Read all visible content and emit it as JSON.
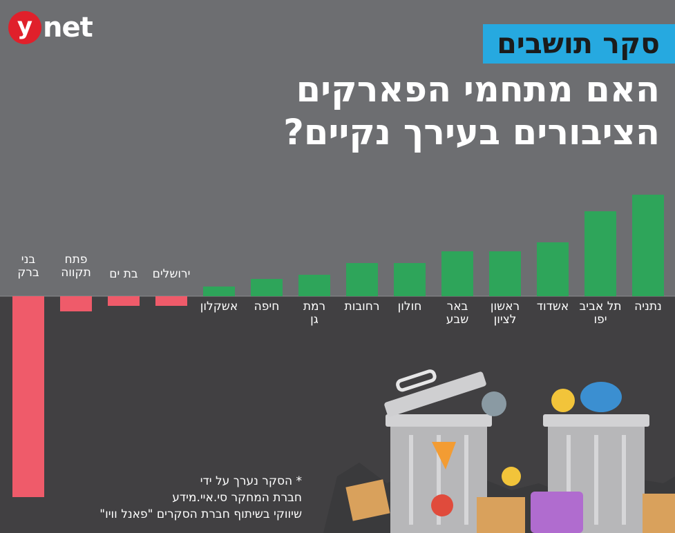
{
  "brand": {
    "logo_mark": "y",
    "logo_text": "net"
  },
  "badge": "סקר תושבים",
  "headline": {
    "line1": "האם מתחמי הפארקים",
    "line2": "הציבורים בעירך נקיים?"
  },
  "colors": {
    "positive": "#2ea55a",
    "negative": "#ef5b6a",
    "badge": "#26a9e0",
    "background_top": "#6d6e71",
    "background_bottom": "#414042"
  },
  "chart_data": {
    "type": "bar",
    "categories": [
      "נתניה",
      "תל אביב יפו",
      "אשדוד",
      "ראשון לציון",
      "באר שבע",
      "חולון",
      "רחובות",
      "רמת גן",
      "חיפה",
      "אשקלון",
      "ירושלים",
      "בת ים",
      "פתח תקווה",
      "בני ברק"
    ],
    "category_lines": [
      [
        "נתניה"
      ],
      [
        "תל אביב",
        "יפו"
      ],
      [
        "אשדוד"
      ],
      [
        "ראשון",
        "לציון"
      ],
      [
        "באר",
        "שבע"
      ],
      [
        "חולון"
      ],
      [
        "רחובות"
      ],
      [
        "רמת",
        "גן"
      ],
      [
        "חיפה"
      ],
      [
        "אשקלון"
      ],
      [
        "ירושלים"
      ],
      [
        "בת ים"
      ],
      [
        "פתח",
        "תקווה"
      ],
      [
        "בני",
        "ברק"
      ]
    ],
    "values": [
      147,
      123,
      78,
      65,
      65,
      48,
      48,
      31,
      25,
      14,
      -14,
      -14,
      -22,
      -291
    ],
    "ylim": [
      -300,
      150
    ],
    "grid": false
  },
  "footnote": {
    "line1": "* הסקר נערך על ידי",
    "line2": "חברת המחקר סי.איי.מידע",
    "line3": "שיווקי בשיתוף חברת הסקרים \"פאנל וויו\""
  }
}
